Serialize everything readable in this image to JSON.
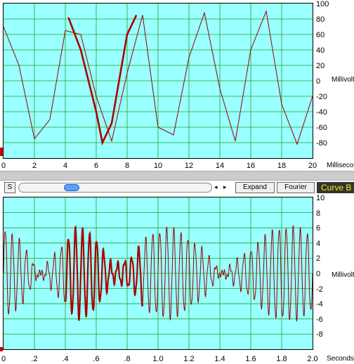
{
  "top_chart": {
    "y_ticks": [
      "100",
      "80",
      "60",
      "40",
      "20",
      "0",
      "-20",
      "-40",
      "-60",
      "-80"
    ],
    "y_unit": "Millivolts",
    "x_ticks": [
      "0",
      "2",
      "4",
      "6",
      "8",
      "10",
      "12",
      "14",
      "16",
      "18",
      "20"
    ],
    "x_unit": "Milliseconds"
  },
  "toolbar": {
    "s_label": "S",
    "left_arrow": "◂",
    "right_arrow": "▸",
    "expand_label": "Expand",
    "fourier_label": "Fourier",
    "curve_label": "Curve B"
  },
  "bottom_chart": {
    "y_ticks": [
      "10",
      "8",
      "6",
      "4",
      "2",
      "0",
      "-2",
      "-4",
      "-6",
      "-8"
    ],
    "y_unit": "Millivolts",
    "x_ticks": [
      "0",
      ".2",
      ".4",
      ".6",
      ".8",
      "1.0",
      "1.2",
      "1.4",
      "1.6",
      "1.8",
      "2.0"
    ],
    "x_unit": "Seconds"
  },
  "chart_data": [
    {
      "type": "line",
      "x_range": [
        0,
        20
      ],
      "y_range": [
        -100,
        100
      ],
      "grid": true,
      "series": [
        {
          "color": "#990000",
          "x": [
            0,
            1,
            2,
            3,
            4,
            5,
            6,
            7,
            8,
            9,
            10,
            11,
            12,
            13,
            14,
            15,
            16,
            17,
            18,
            19,
            20
          ],
          "y": [
            70,
            20,
            -75,
            -50,
            65,
            60,
            -20,
            -78,
            10,
            85,
            -60,
            -70,
            30,
            88,
            -10,
            -78,
            40,
            90,
            -30,
            -82,
            -20
          ]
        },
        {
          "color": "#aa0000",
          "highlight": true,
          "x": [
            4.2,
            5,
            6,
            6.4,
            7,
            8,
            8.6
          ],
          "y": [
            82,
            40,
            -40,
            -80,
            -55,
            60,
            85
          ]
        }
      ]
    },
    {
      "type": "line",
      "x_range": [
        0,
        2.0
      ],
      "y_range": [
        -10,
        10
      ],
      "grid": true,
      "series": [
        {
          "color": "#990000",
          "frequency_hz": 22,
          "envelope": [
            6,
            4,
            0,
            3,
            6,
            5,
            1,
            2,
            5,
            6,
            5,
            3,
            0,
            2,
            4,
            6,
            6,
            5
          ]
        },
        {
          "color": "#aa0000",
          "highlight": true,
          "x_range": [
            0.4,
            0.9
          ]
        }
      ]
    }
  ]
}
